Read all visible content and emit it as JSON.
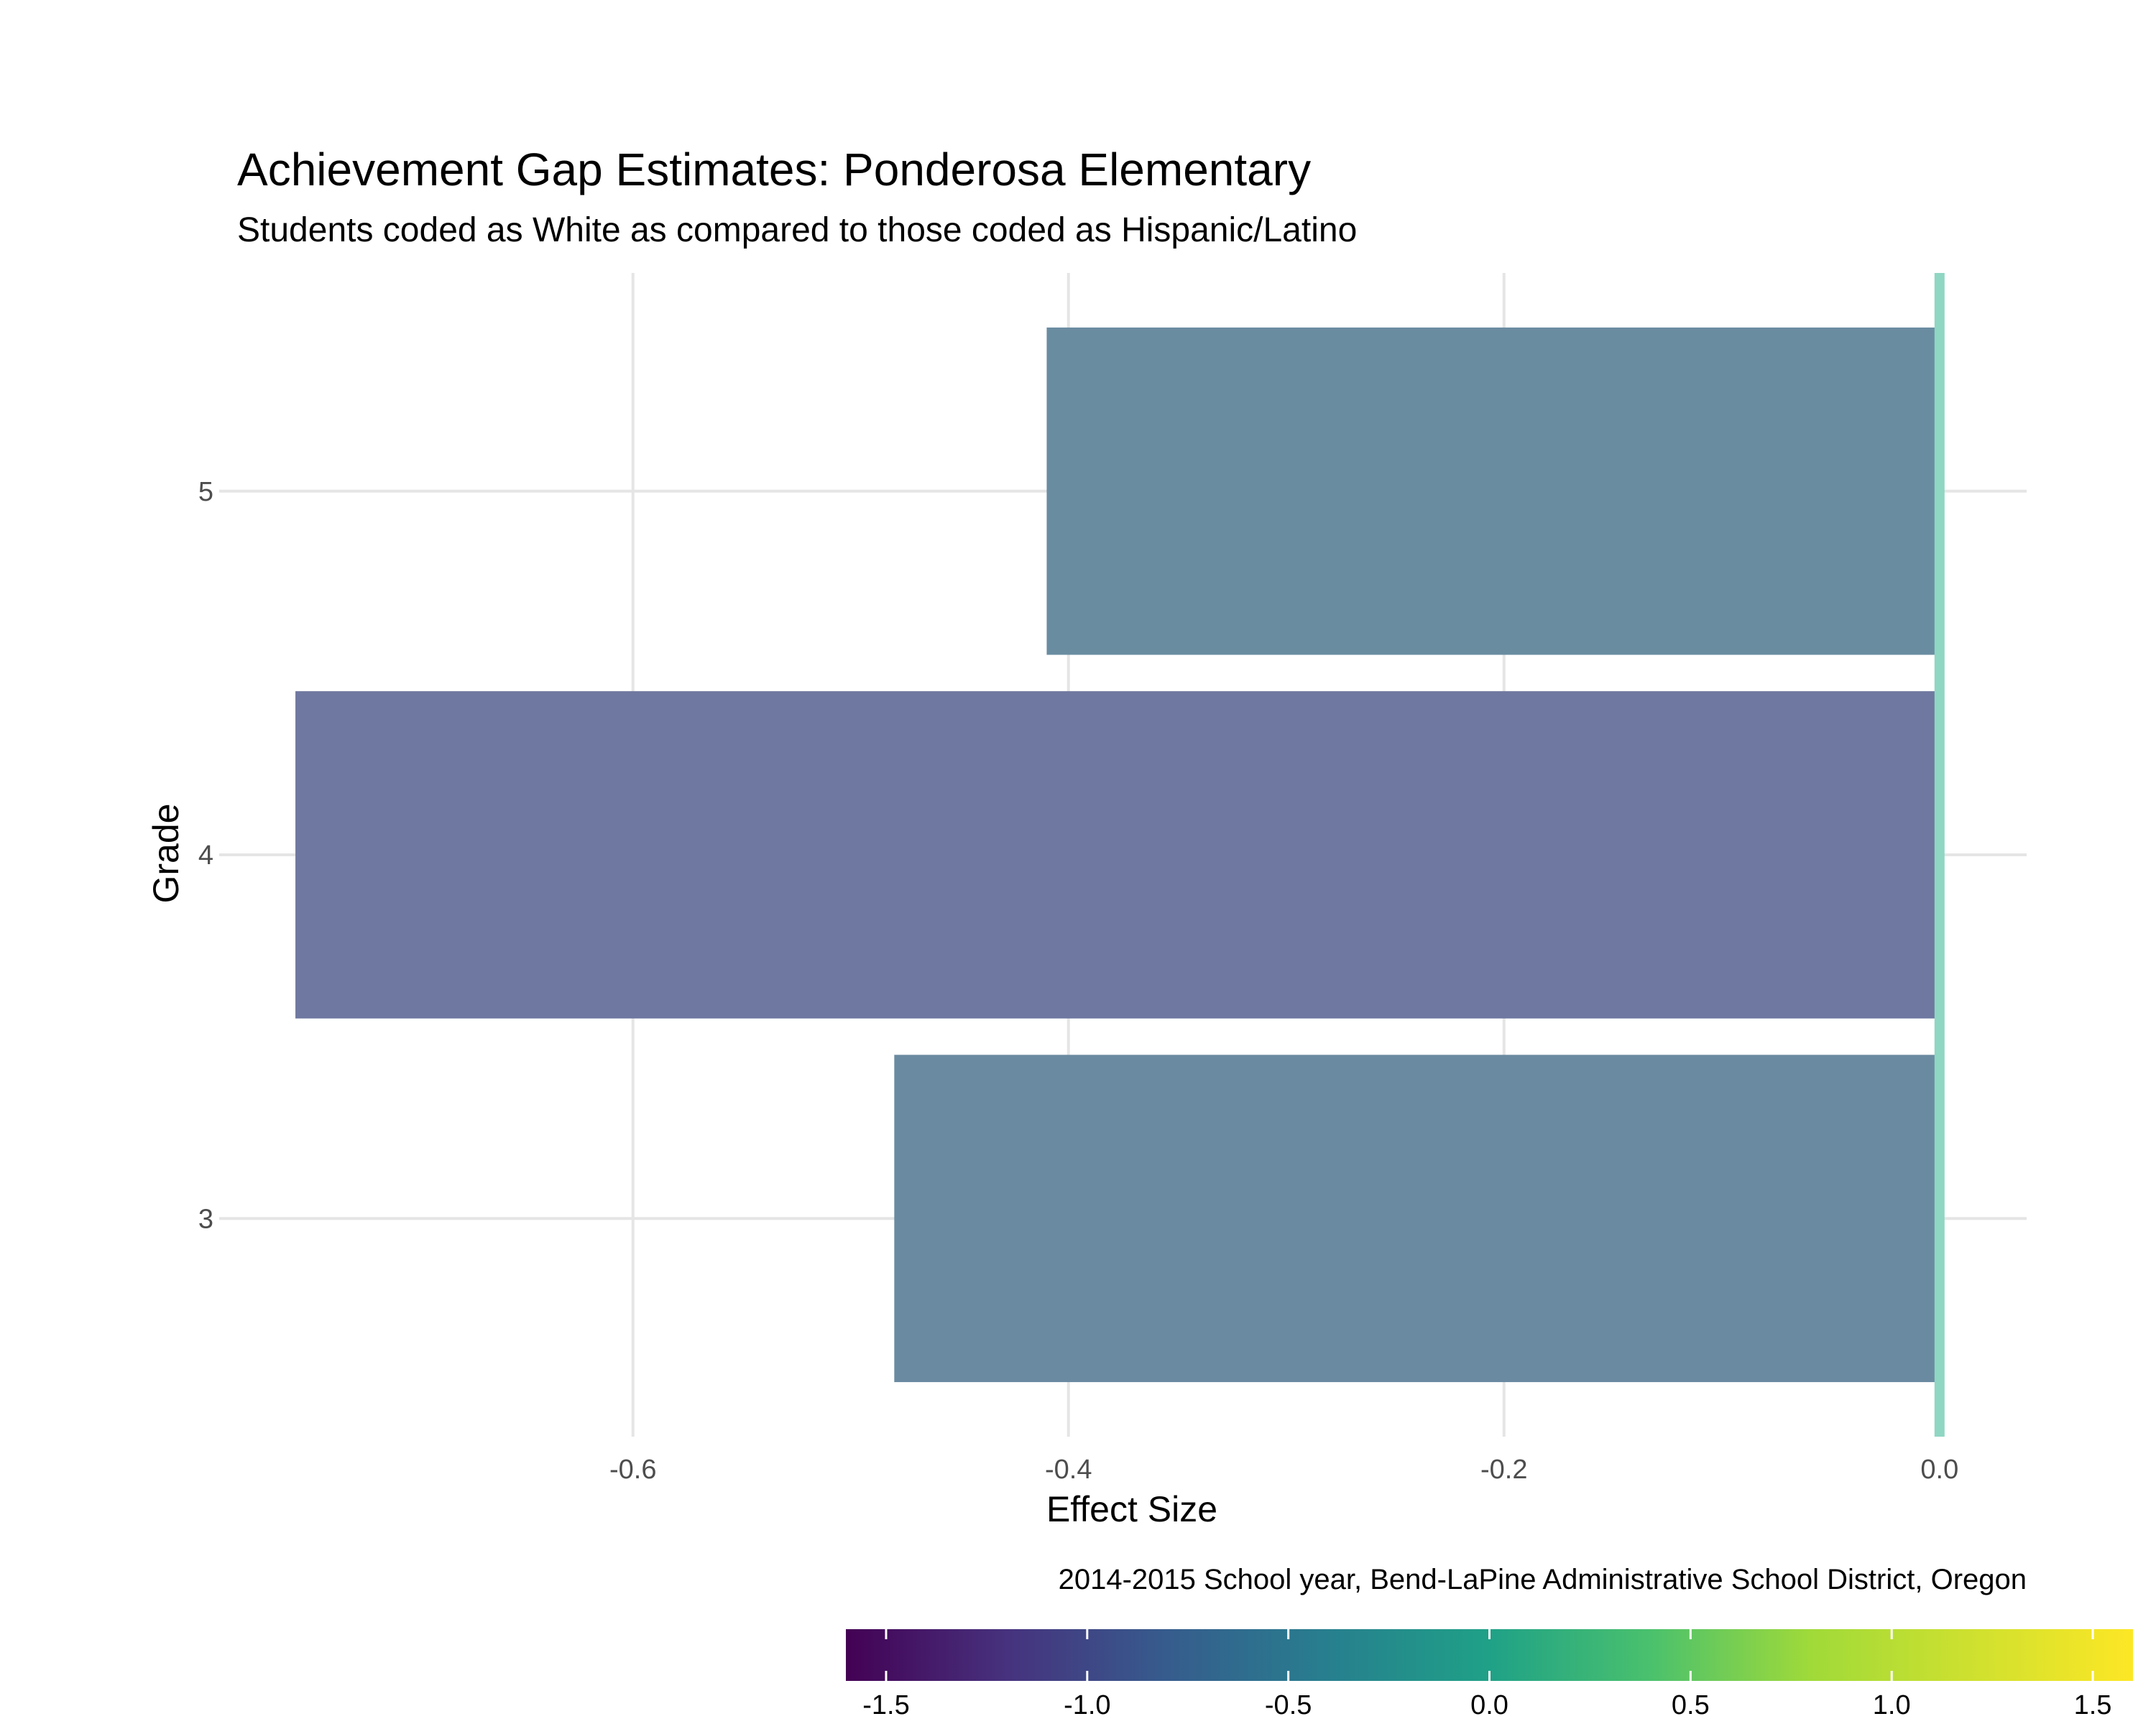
{
  "chart_data": {
    "type": "bar",
    "orientation": "horizontal",
    "title": "Achievement Gap Estimates: Ponderosa Elementary",
    "subtitle": "Students coded as White as compared to those coded as Hispanic/Latino",
    "xlabel": "Effect Size",
    "ylabel": "Grade",
    "caption": "2014-2015 School year, Bend-LaPine Administrative School District, Oregon",
    "categories": [
      "3",
      "4",
      "5"
    ],
    "values": [
      -0.48,
      -0.755,
      -0.41
    ],
    "bar_colors": [
      "#6a8aa1",
      "#6f78a0",
      "#6a8ca1"
    ],
    "xlim": [
      -0.79,
      0.04
    ],
    "x_ticks": [
      -0.6,
      -0.4,
      -0.2,
      0.0
    ],
    "x_tick_labels": [
      "-0.6",
      "-0.4",
      "-0.2",
      "0.0"
    ],
    "reference_line": {
      "x": 0.0,
      "color": "#8fd6c3"
    },
    "grid": true,
    "legend": {
      "type": "colorbar",
      "position": "bottom",
      "range": [
        -1.6,
        1.6
      ],
      "ticks": [
        -1.5,
        -1.0,
        -0.5,
        0.0,
        0.5,
        1.0,
        1.5
      ],
      "tick_labels": [
        "-1.5",
        "-1.0",
        "-0.5",
        "0.0",
        "0.5",
        "1.0",
        "1.5"
      ],
      "colormap": "viridis"
    }
  }
}
